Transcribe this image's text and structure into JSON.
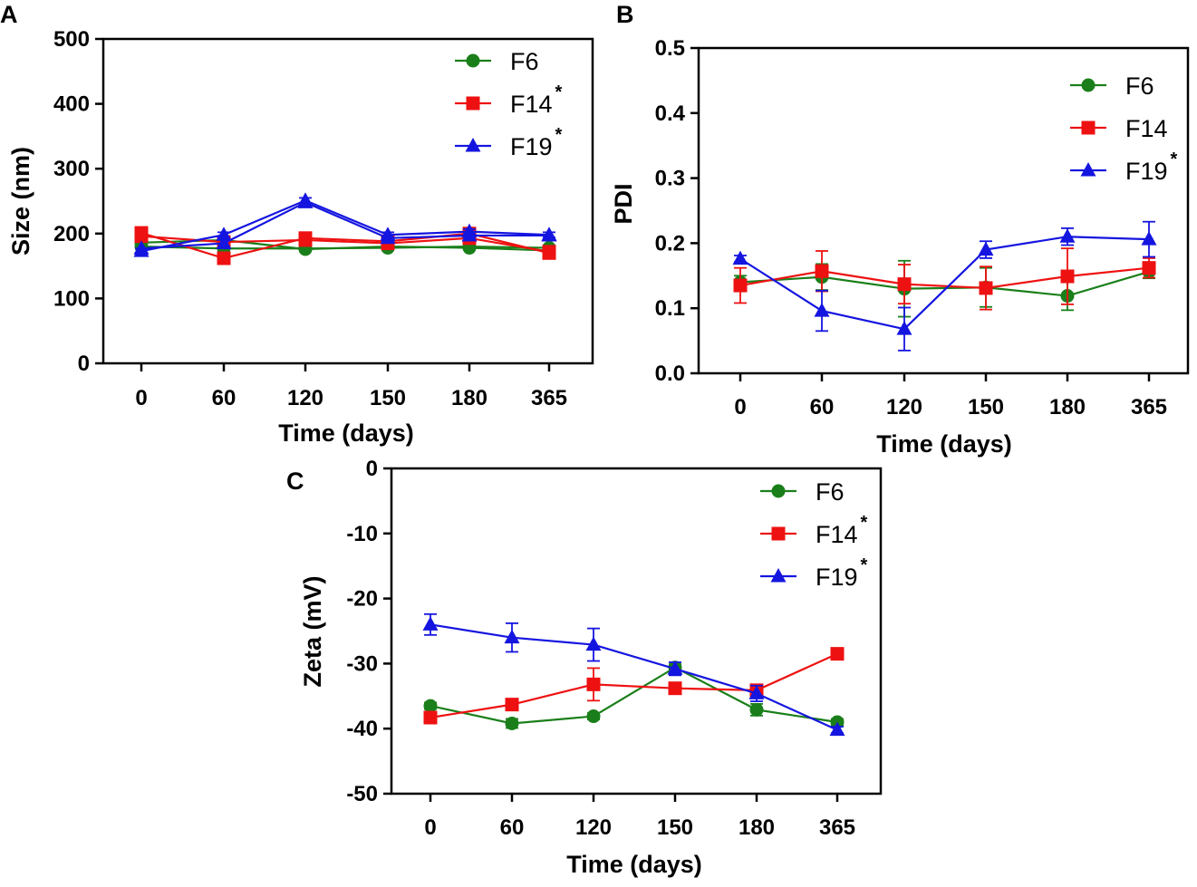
{
  "colors": {
    "F6": "#1a7f1a",
    "F14": "#ee1111",
    "F19": "#1515e0"
  },
  "chart_data": [
    {
      "panel": "A",
      "type": "line",
      "categories": [
        "0",
        "60",
        "120",
        "150",
        "180",
        "365"
      ],
      "xlabel": "Time (days)",
      "ylabel": "Size (nm)",
      "ylim": [
        0,
        500
      ],
      "yticks": [
        "0",
        "100",
        "200",
        "300",
        "400",
        "500"
      ],
      "legend": [
        {
          "label": "F6",
          "sup": ""
        },
        {
          "label": "F14",
          "sup": "*"
        },
        {
          "label": "F19",
          "sup": "*"
        }
      ],
      "series": [
        {
          "name": "F6",
          "marker": "circle",
          "values": [
            180,
            177,
            177,
            178,
            180,
            178
          ],
          "errors": [
            4,
            4,
            4,
            4,
            4,
            4
          ],
          "replicate": [
            186,
            190,
            176,
            180,
            178,
            174
          ]
        },
        {
          "name": "F14",
          "marker": "square",
          "values": [
            201,
            162,
            193,
            188,
            200,
            170
          ],
          "errors": [
            4,
            4,
            4,
            4,
            4,
            4
          ],
          "replicate": [
            196,
            187,
            190,
            185,
            193,
            172
          ]
        },
        {
          "name": "F19",
          "marker": "triangle",
          "values": [
            173,
            198,
            251,
            198,
            203,
            198
          ],
          "errors": [
            4,
            4,
            4,
            4,
            4,
            4
          ],
          "replicate": [
            177,
            185,
            248,
            193,
            197,
            197
          ]
        }
      ]
    },
    {
      "panel": "B",
      "type": "line",
      "categories": [
        "0",
        "60",
        "120",
        "150",
        "180",
        "365"
      ],
      "xlabel": "Time (days)",
      "ylabel": "PDI",
      "ylim": [
        0,
        0.5
      ],
      "yticks": [
        "0.0",
        "0.1",
        "0.2",
        "0.3",
        "0.4",
        "0.5"
      ],
      "legend": [
        {
          "label": "F6",
          "sup": ""
        },
        {
          "label": "F14",
          "sup": ""
        },
        {
          "label": "F19",
          "sup": "*"
        }
      ],
      "series": [
        {
          "name": "F6",
          "marker": "circle",
          "values": [
            0.14,
            0.148,
            0.13,
            0.132,
            0.119,
            0.156
          ],
          "errors": [
            0.01,
            0.02,
            0.043,
            0.03,
            0.022,
            0.01
          ]
        },
        {
          "name": "F14",
          "marker": "square",
          "values": [
            0.135,
            0.157,
            0.137,
            0.131,
            0.149,
            0.162
          ],
          "errors": [
            0.027,
            0.031,
            0.03,
            0.033,
            0.043,
            0.015
          ]
        },
        {
          "name": "F19",
          "marker": "triangle",
          "values": [
            0.176,
            0.096,
            0.068,
            0.19,
            0.21,
            0.206
          ],
          "errors": [
            0.005,
            0.031,
            0.033,
            0.013,
            0.013,
            0.027
          ]
        }
      ]
    },
    {
      "panel": "C",
      "type": "line",
      "categories": [
        "0",
        "60",
        "120",
        "150",
        "180",
        "365"
      ],
      "xlabel": "Time (days)",
      "ylabel": "Zeta (mV)",
      "ylim": [
        -50,
        0
      ],
      "yticks": [
        "-50",
        "-40",
        "-30",
        "-20",
        "-10",
        "0"
      ],
      "legend": [
        {
          "label": "F6",
          "sup": ""
        },
        {
          "label": "F14",
          "sup": "*"
        },
        {
          "label": "F19",
          "sup": "*"
        }
      ],
      "series": [
        {
          "name": "F6",
          "marker": "circle",
          "values": [
            -36.5,
            -39.2,
            -38.1,
            -30.6,
            -37.1,
            -39
          ],
          "errors": [
            0.5,
            0.7,
            0.5,
            0.5,
            0.9,
            0.5
          ]
        },
        {
          "name": "F14",
          "marker": "square",
          "values": [
            -38.3,
            -36.3,
            -33.2,
            -33.8,
            -34.1,
            -28.5
          ],
          "errors": [
            0.5,
            0.5,
            2.5,
            0.5,
            0.5,
            0.5
          ]
        },
        {
          "name": "F19",
          "marker": "triangle",
          "values": [
            -24,
            -26,
            -27.1,
            -30.8,
            -34.6,
            -40.2
          ],
          "errors": [
            1.6,
            2.2,
            2.5,
            1.0,
            1.2,
            0.5
          ]
        }
      ]
    }
  ]
}
